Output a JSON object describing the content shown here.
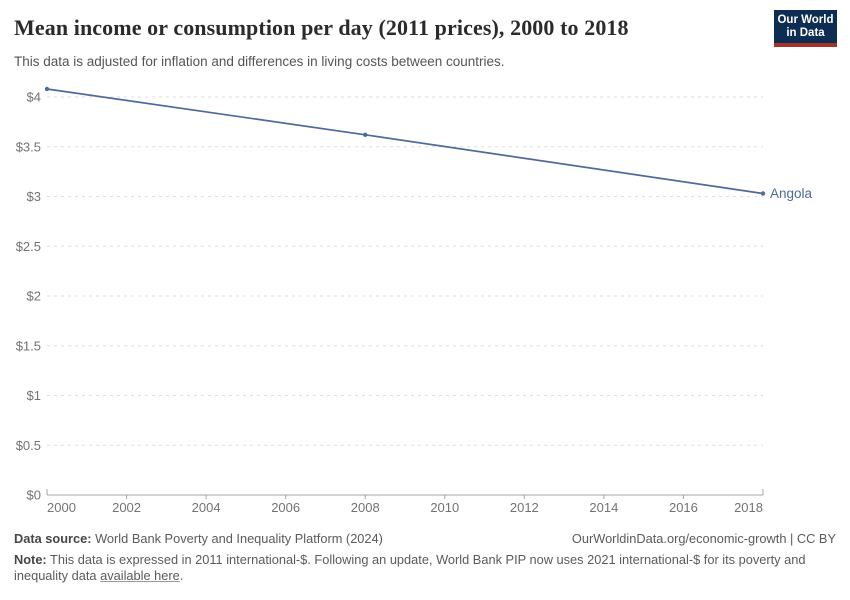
{
  "header": {
    "title": "Mean income or consumption per day (2011 prices), 2000 to 2018",
    "subtitle": "This data is adjusted for inflation and differences in living costs between countries.",
    "logo": {
      "line1": "Our World",
      "line2": "in Data"
    }
  },
  "colors": {
    "line": "#4C6A9C",
    "entity_label": "#4C6A9C",
    "grid": "#dedede",
    "axis": "#a5a5a5",
    "tick_text": "#737373",
    "logo_bg": "#0d2d52",
    "logo_accent": "#a53229"
  },
  "chart_data": {
    "type": "line",
    "title": "Mean income or consumption per day (2011 prices), 2000 to 2018",
    "subtitle": "This data is adjusted for inflation and differences in living costs between countries.",
    "xlabel": "",
    "ylabel": "",
    "xlim": [
      2000,
      2018
    ],
    "ylim": [
      0,
      4
    ],
    "grid": "horizontal-dashed",
    "legend_position": "line-end-label",
    "x_ticks": [
      2000,
      2002,
      2004,
      2006,
      2008,
      2010,
      2012,
      2014,
      2016,
      2018
    ],
    "y_ticks": [
      {
        "value": 0,
        "label": "$0"
      },
      {
        "value": 0.5,
        "label": "$0.5"
      },
      {
        "value": 1,
        "label": "$1"
      },
      {
        "value": 1.5,
        "label": "$1.5"
      },
      {
        "value": 2,
        "label": "$2"
      },
      {
        "value": 2.5,
        "label": "$2.5"
      },
      {
        "value": 3,
        "label": "$3"
      },
      {
        "value": 3.5,
        "label": "$3.5"
      },
      {
        "value": 4,
        "label": "$4"
      }
    ],
    "series": [
      {
        "name": "Angola",
        "points": [
          [
            2000,
            4.08
          ],
          [
            2008,
            3.62
          ],
          [
            2018,
            3.03
          ]
        ]
      }
    ]
  },
  "footer": {
    "datasource_label": "Data source:",
    "datasource_text": " World Bank Poverty and Inequality Platform (2024)",
    "attribution": "OurWorldinData.org/economic-growth | CC BY",
    "note_label": "Note:",
    "note_text": " This data is expressed in 2011 international-$. Following an update, World Bank PIP now uses 2021 international-$ for its poverty and inequality data ",
    "note_link": "available here",
    "note_period": "."
  }
}
